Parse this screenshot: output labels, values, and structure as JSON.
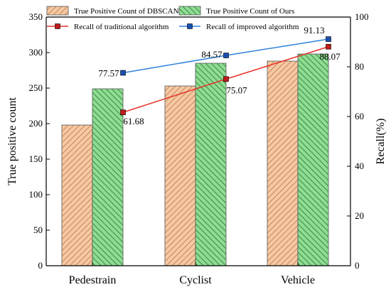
{
  "chart_data": {
    "type": "bar+line",
    "categories": [
      "Pedestrain",
      "Cyclist",
      "Vehicle"
    ],
    "bar_series": [
      {
        "name": "True Positive Count of DBSCAN",
        "values": [
          198,
          253,
          288
        ],
        "color": "#f5c9a3",
        "hatch": "#c8875a"
      },
      {
        "name": "True Positive Count of Ours",
        "values": [
          249,
          285,
          298
        ],
        "color": "#8fdc93",
        "hatch": "#3c8a45"
      }
    ],
    "line_series": [
      {
        "name": "Recall of traditional algorithm",
        "values": [
          61.68,
          75.07,
          88.07
        ],
        "labels": [
          "61.68",
          "75.07",
          "88.07"
        ],
        "color": "#e8312a",
        "marker": "#c21a1a"
      },
      {
        "name": "Recall of improved algorithm",
        "values": [
          77.57,
          84.57,
          91.13
        ],
        "labels": [
          "77.57",
          "84.57",
          "91.13"
        ],
        "color": "#2f83dc",
        "marker": "#1a4fb0"
      }
    ],
    "ylabel": "True positive count",
    "ylabel_right": "Recall(%)",
    "ylim": [
      0,
      350
    ],
    "yticks": [
      "0",
      "50",
      "100",
      "150",
      "200",
      "250",
      "300",
      "350"
    ],
    "ylim_right": [
      0,
      100
    ],
    "yticks_right": [
      "0",
      "20",
      "40",
      "60",
      "80",
      "100"
    ],
    "legend_position": "top"
  }
}
